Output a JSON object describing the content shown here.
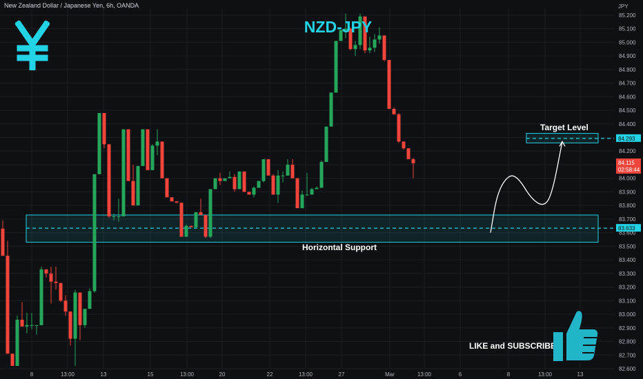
{
  "header": {
    "symbol_line": "New Zealand Dollar / Japanese Yen, 6h, OANDA",
    "currency_unit": "JPY"
  },
  "title": "NZD-JPY",
  "annotations": {
    "target_label": "Target Level",
    "support_label": "Horizontal Support",
    "cta": "LIKE and SUBSCRIBE"
  },
  "colors": {
    "background": "#0f1014",
    "up": "#26a65b",
    "down": "#f0453a",
    "accent": "#22d3e6"
  },
  "icons": [
    "yen-icon",
    "thumbs-up-icon"
  ],
  "chart_data": {
    "type": "candlestick",
    "x_tick_labels": [
      "8",
      "13:00",
      "13",
      "15",
      "13:00",
      "20",
      "22",
      "13:00",
      "27",
      "Mar",
      "13:00",
      "6",
      "8",
      "13:00",
      "13"
    ],
    "ylim": [
      82.6,
      85.25
    ],
    "y_ticks": [
      85.2,
      85.1,
      85.0,
      84.9,
      84.8,
      84.7,
      84.6,
      84.5,
      84.4,
      84.3,
      84.2,
      84.1,
      84.0,
      83.9,
      83.8,
      83.7,
      83.6,
      83.5,
      83.4,
      83.3,
      83.2,
      83.1,
      83.0,
      82.9,
      82.8,
      82.7,
      82.6
    ],
    "y_tick_labels": [
      "85.200",
      "85.100",
      "85.000",
      "84.900",
      "84.800",
      "84.700",
      "84.600",
      "84.500",
      "84.400",
      "84.300",
      "84.200",
      "84.100",
      "84.000",
      "83.900",
      "83.800",
      "83.700",
      "83.600",
      "83.500",
      "83.400",
      "83.300",
      "83.200",
      "83.100",
      "83.000",
      "82.900",
      "82.800",
      "82.700",
      "82.600"
    ],
    "last_price": {
      "value": 84.115,
      "label": "84.115",
      "countdown": "02:58:44"
    },
    "target_level": {
      "value": 84.293,
      "label": "84.293"
    },
    "support_level": {
      "value": 83.633,
      "label": "83.633"
    },
    "support_zone": [
      83.53,
      83.73
    ],
    "target_zone": [
      84.26,
      84.33
    ],
    "candles": [
      [
        83.63,
        83.69,
        83.43,
        83.43
      ],
      [
        83.43,
        83.54,
        82.71,
        82.71
      ],
      [
        82.71,
        82.71,
        82.62,
        82.62
      ],
      [
        82.62,
        82.99,
        82.62,
        82.96
      ],
      [
        82.96,
        83.09,
        82.91,
        82.91
      ],
      [
        82.91,
        83.01,
        82.86,
        82.92
      ],
      [
        82.92,
        83.01,
        82.89,
        82.92
      ],
      [
        82.92,
        82.92,
        82.85,
        82.92
      ],
      [
        82.92,
        83.35,
        82.92,
        83.33
      ],
      [
        83.33,
        83.33,
        83.27,
        83.3
      ],
      [
        83.3,
        83.35,
        83.08,
        83.24
      ],
      [
        83.24,
        83.35,
        83.18,
        83.23
      ],
      [
        83.23,
        83.23,
        83.09,
        83.1
      ],
      [
        83.1,
        83.14,
        82.99,
        83.02
      ],
      [
        83.02,
        83.02,
        82.77,
        82.82
      ],
      [
        82.82,
        83.18,
        82.62,
        83.16
      ],
      [
        83.16,
        83.16,
        82.81,
        82.92
      ],
      [
        82.92,
        83.04,
        82.9,
        83.04
      ],
      [
        83.04,
        83.19,
        83.04,
        83.17
      ],
      [
        83.17,
        84.03,
        83.16,
        84.03
      ],
      [
        84.03,
        84.48,
        84.03,
        84.48
      ],
      [
        84.48,
        84.48,
        84.22,
        84.25
      ],
      [
        84.25,
        84.25,
        83.71,
        83.72
      ],
      [
        83.72,
        83.74,
        83.69,
        83.72
      ],
      [
        83.72,
        83.85,
        83.68,
        83.72
      ],
      [
        83.72,
        84.36,
        83.72,
        84.36
      ],
      [
        84.36,
        84.36,
        83.98,
        83.98
      ],
      [
        83.98,
        84.1,
        83.8,
        83.8
      ],
      [
        83.8,
        84.09,
        83.8,
        84.09
      ],
      [
        84.09,
        84.36,
        84.09,
        84.36
      ],
      [
        84.36,
        84.36,
        84.06,
        84.06
      ],
      [
        84.06,
        84.25,
        84.06,
        84.24
      ],
      [
        84.24,
        84.36,
        84.17,
        84.27
      ],
      [
        84.27,
        84.27,
        84.0,
        84.0
      ],
      [
        84.0,
        84.0,
        83.86,
        83.86
      ],
      [
        83.86,
        83.86,
        83.83,
        83.83
      ],
      [
        83.83,
        83.83,
        83.82,
        83.82
      ],
      [
        83.82,
        83.82,
        83.57,
        83.57
      ],
      [
        83.57,
        83.66,
        83.57,
        83.65
      ],
      [
        83.65,
        83.65,
        83.64,
        83.64
      ],
      [
        83.64,
        83.75,
        83.63,
        83.75
      ],
      [
        83.75,
        83.85,
        83.73,
        83.73
      ],
      [
        83.73,
        83.73,
        83.56,
        83.57
      ],
      [
        83.57,
        83.92,
        83.56,
        83.92
      ],
      [
        83.92,
        84.0,
        83.92,
        84.0
      ],
      [
        84.0,
        84.04,
        83.95,
        83.98
      ],
      [
        83.98,
        84.0,
        83.98,
        84.0
      ],
      [
        84.0,
        84.05,
        84.0,
        84.01
      ],
      [
        84.01,
        84.03,
        83.9,
        83.92
      ],
      [
        83.92,
        84.05,
        83.92,
        84.05
      ],
      [
        84.05,
        84.05,
        83.9,
        83.9
      ],
      [
        83.9,
        83.9,
        83.88,
        83.88
      ],
      [
        83.88,
        83.94,
        83.86,
        83.93
      ],
      [
        83.93,
        83.98,
        83.93,
        83.98
      ],
      [
        83.98,
        84.14,
        83.97,
        84.14
      ],
      [
        84.14,
        84.14,
        84.02,
        84.02
      ],
      [
        84.02,
        84.03,
        83.88,
        83.88
      ],
      [
        83.88,
        84.06,
        83.82,
        84.02
      ],
      [
        84.02,
        84.05,
        83.97,
        84.02
      ],
      [
        84.02,
        84.14,
        84.02,
        84.1
      ],
      [
        84.1,
        84.14,
        84.0,
        84.0
      ],
      [
        84.0,
        84.0,
        83.78,
        83.78
      ],
      [
        83.78,
        83.91,
        83.78,
        83.88
      ],
      [
        83.88,
        84.04,
        83.87,
        83.88
      ],
      [
        83.88,
        83.93,
        83.88,
        83.92
      ],
      [
        83.92,
        83.94,
        83.93,
        83.93
      ],
      [
        83.93,
        84.13,
        83.93,
        84.12
      ],
      [
        84.12,
        84.38,
        84.12,
        84.38
      ],
      [
        84.38,
        84.63,
        84.38,
        84.63
      ],
      [
        84.63,
        85.01,
        84.63,
        85.01
      ],
      [
        85.01,
        85.09,
        85.01,
        85.09
      ],
      [
        85.09,
        85.21,
        85.03,
        85.1
      ],
      [
        85.1,
        85.11,
        84.94,
        84.95
      ],
      [
        84.95,
        85.01,
        84.9,
        84.98
      ],
      [
        84.98,
        85.21,
        84.95,
        85.19
      ],
      [
        85.19,
        85.19,
        84.92,
        84.94
      ],
      [
        84.94,
        85.04,
        84.92,
        84.96
      ],
      [
        84.96,
        85.06,
        84.93,
        85.02
      ],
      [
        85.02,
        85.11,
        84.99,
        85.05
      ],
      [
        85.05,
        85.05,
        84.86,
        84.87
      ],
      [
        84.87,
        84.87,
        84.51,
        84.51
      ],
      [
        84.51,
        84.52,
        84.47,
        84.47
      ],
      [
        84.47,
        84.48,
        84.26,
        84.27
      ],
      [
        84.27,
        84.27,
        84.21,
        84.22
      ],
      [
        84.22,
        84.22,
        84.14,
        84.14
      ],
      [
        84.14,
        84.15,
        84.0,
        84.11
      ]
    ],
    "projection": [
      83.6,
      83.9,
      84.03,
      84.0,
      83.85,
      83.79,
      83.88,
      84.27
    ]
  }
}
